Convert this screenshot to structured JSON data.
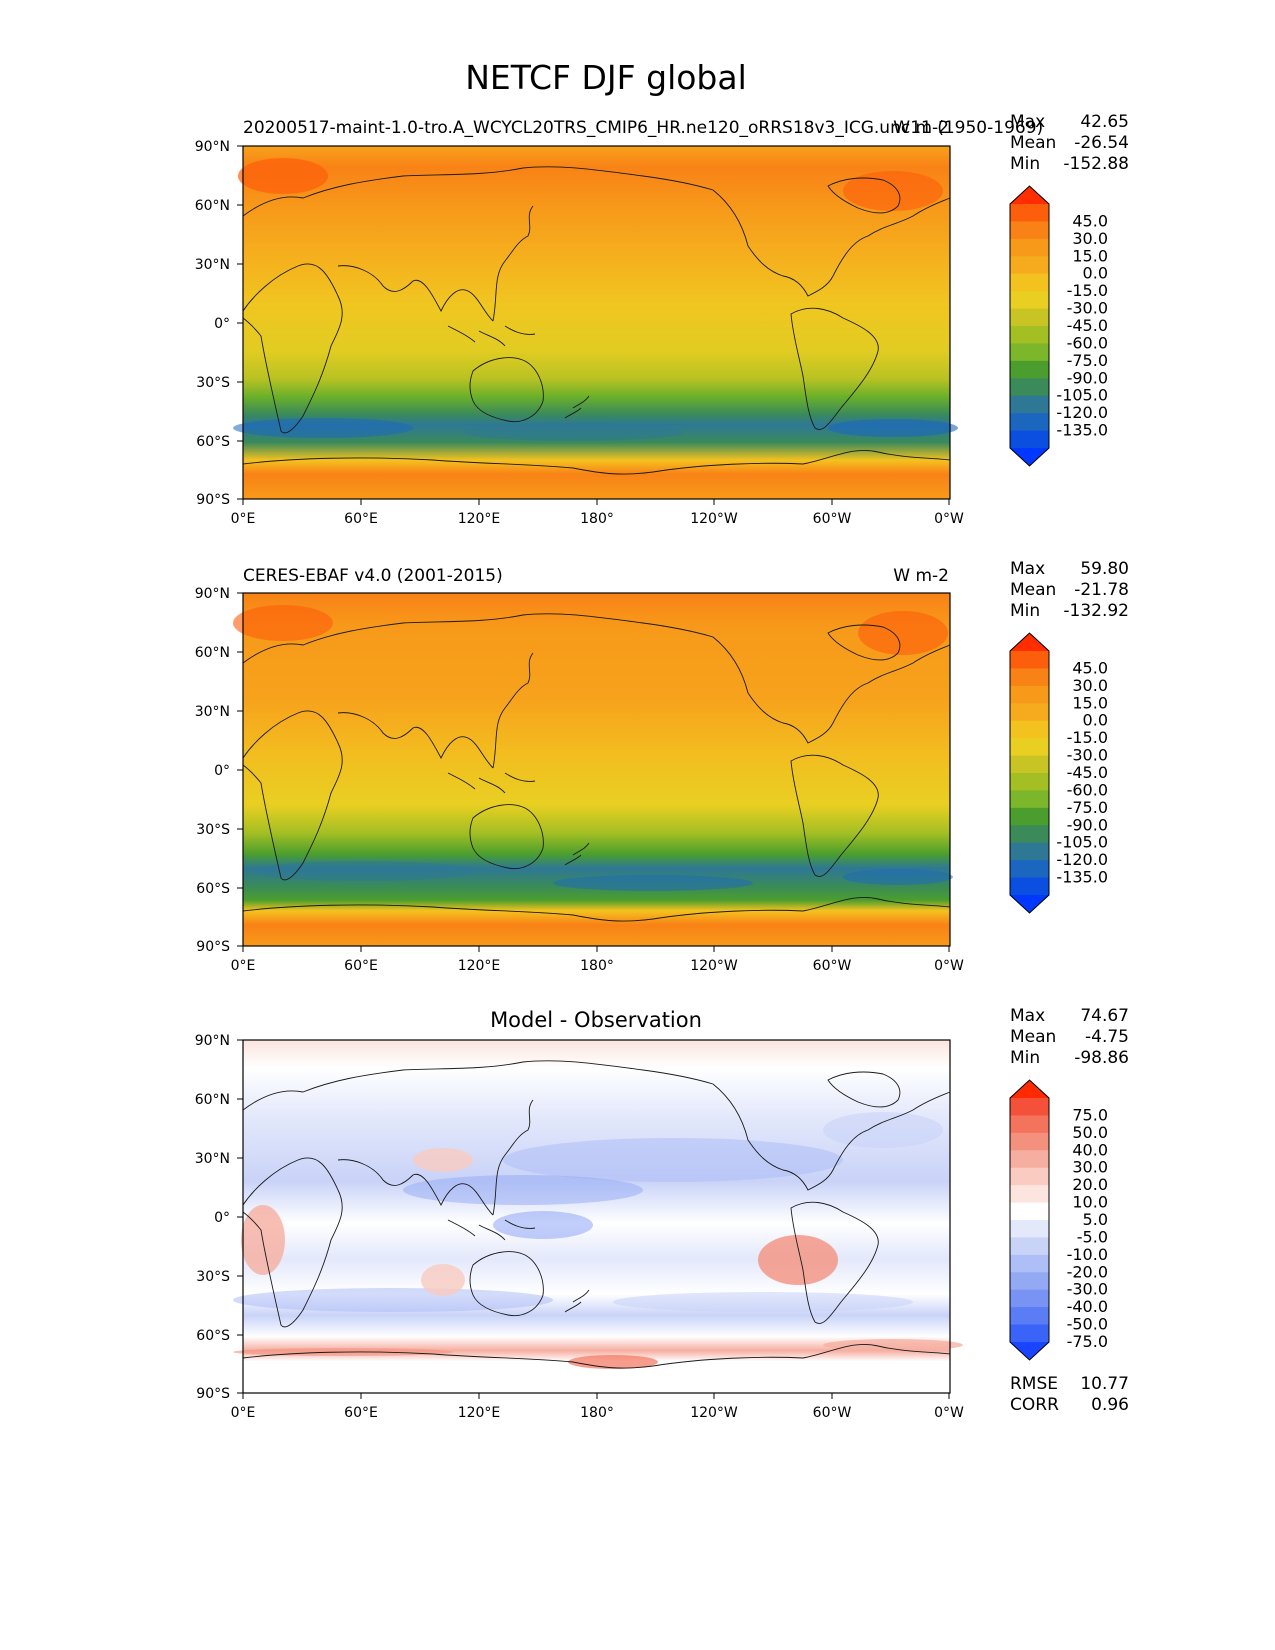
{
  "figure": {
    "title": "NETCF DJF global"
  },
  "axes": {
    "lat_ticks": [
      "90°N",
      "60°N",
      "30°N",
      "0°",
      "30°S",
      "60°S",
      "90°S"
    ],
    "lon_ticks": [
      "0°E",
      "60°E",
      "120°E",
      "180°",
      "120°W",
      "60°W",
      "0°W"
    ]
  },
  "panels": [
    {
      "id": "model",
      "title_left": "20200517-maint-1.0-tro.A_WCYCL20TRS_CMIP6_HR.ne120_oRRS18v3_ICG.unc11 (1950-1969)",
      "title_center": "",
      "title_right": "W m-2",
      "stats": [
        {
          "label": "Max",
          "value": "42.65"
        },
        {
          "label": "Mean",
          "value": "-26.54"
        },
        {
          "label": "Min",
          "value": "-152.88"
        }
      ],
      "colorbar": {
        "labels": [
          "45.0",
          "30.0",
          "15.0",
          "0.0",
          "-15.0",
          "-30.0",
          "-45.0",
          "-60.0",
          "-75.0",
          "-90.0",
          "-105.0",
          "-120.0",
          "-135.0"
        ],
        "colors": [
          "#ff2d00",
          "#fd5e0b",
          "#f98216",
          "#f79a1a",
          "#f5ab1d",
          "#f4c21f",
          "#e9cf22",
          "#c8c423",
          "#a3bf23",
          "#7cb62a",
          "#4b9e2e",
          "#3a8a5a",
          "#2e7896",
          "#1b67c0",
          "#0a4fe0",
          "#0038ff"
        ]
      },
      "footer_stats": []
    },
    {
      "id": "obs",
      "title_left": "CERES-EBAF v4.0 (2001-2015)",
      "title_center": "",
      "title_right": "W m-2",
      "stats": [
        {
          "label": "Max",
          "value": "59.80"
        },
        {
          "label": "Mean",
          "value": "-21.78"
        },
        {
          "label": "Min",
          "value": "-132.92"
        }
      ],
      "colorbar": {
        "labels": [
          "45.0",
          "30.0",
          "15.0",
          "0.0",
          "-15.0",
          "-30.0",
          "-45.0",
          "-60.0",
          "-75.0",
          "-90.0",
          "-105.0",
          "-120.0",
          "-135.0"
        ],
        "colors": [
          "#ff2d00",
          "#fd5e0b",
          "#f98216",
          "#f79a1a",
          "#f5ab1d",
          "#f4c21f",
          "#e9cf22",
          "#c8c423",
          "#a3bf23",
          "#7cb62a",
          "#4b9e2e",
          "#3a8a5a",
          "#2e7896",
          "#1b67c0",
          "#0a4fe0",
          "#0038ff"
        ]
      },
      "footer_stats": []
    },
    {
      "id": "diff",
      "title_left": "",
      "title_center": "Model - Observation",
      "title_right": "",
      "stats": [
        {
          "label": "Max",
          "value": "74.67"
        },
        {
          "label": "Mean",
          "value": "-4.75"
        },
        {
          "label": "Min",
          "value": "-98.86"
        }
      ],
      "colorbar": {
        "labels": [
          "75.0",
          "50.0",
          "40.0",
          "30.0",
          "20.0",
          "10.0",
          "5.0",
          "-5.0",
          "-10.0",
          "-20.0",
          "-30.0",
          "-40.0",
          "-50.0",
          "-75.0"
        ],
        "colors": [
          "#ff2a00",
          "#f4503a",
          "#f4735c",
          "#f4917e",
          "#f6aea0",
          "#f9cbc1",
          "#fbe5de",
          "#ffffff",
          "#e3e8fb",
          "#c9d3f8",
          "#aebef6",
          "#93a9f4",
          "#7893f3",
          "#5a7cf4",
          "#3a63f8",
          "#1a44ff"
        ]
      },
      "footer_stats": [
        {
          "label": "RMSE",
          "value": "10.77"
        },
        {
          "label": "CORR",
          "value": "0.96"
        }
      ]
    }
  ]
}
